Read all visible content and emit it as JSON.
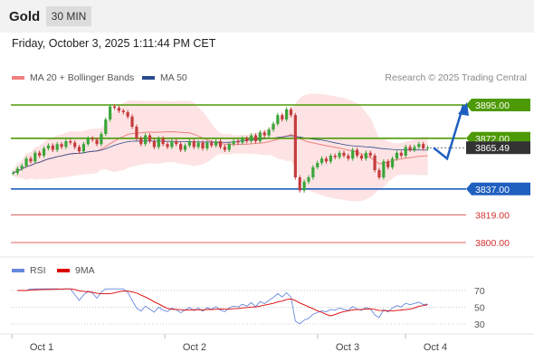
{
  "header": {
    "title": "Gold",
    "timeframe": "30 MIN"
  },
  "datetime": "Friday, October 3, 2025 1:11:44 PM CET",
  "legend": {
    "ma20_label": "MA 20 + Bollinger Bands",
    "ma20_color": "#f08080",
    "ma50_label": "MA 50",
    "ma50_color": "#2b4b8c"
  },
  "credit": "Research © 2025 Trading Central",
  "rsi_legend": {
    "rsi_label": "RSI",
    "rsi_color": "#6688dd",
    "ma_label": "9MA",
    "ma_color": "#dd0000"
  },
  "chart_data": {
    "type": "candlestick",
    "instrument": "Gold",
    "timeframe": "30 MIN",
    "x_ticks": [
      "Oct 1",
      "Oct 2",
      "Oct 3",
      "Oct 4"
    ],
    "current_price": "3865.49",
    "levels": [
      {
        "value": "3895.00",
        "kind": "resistance",
        "color": "#4e9a06"
      },
      {
        "value": "3872.00",
        "kind": "resistance",
        "color": "#4e9a06"
      },
      {
        "value": "3837.00",
        "kind": "pivot",
        "color": "#1f5fbf"
      },
      {
        "value": "3819.00",
        "kind": "support",
        "color": "#d03030"
      },
      {
        "value": "3800.00",
        "kind": "support",
        "color": "#d03030"
      }
    ],
    "candles_close": [
      3848,
      3851,
      3853,
      3858,
      3856,
      3862,
      3860,
      3865,
      3867,
      3864,
      3868,
      3866,
      3870,
      3869,
      3866,
      3863,
      3868,
      3872,
      3871,
      3868,
      3875,
      3885,
      3894,
      3893,
      3891,
      3890,
      3887,
      3880,
      3872,
      3868,
      3874,
      3870,
      3866,
      3872,
      3868,
      3866,
      3870,
      3868,
      3864,
      3867,
      3870,
      3866,
      3869,
      3865,
      3869,
      3867,
      3870,
      3866,
      3864,
      3868,
      3870,
      3869,
      3872,
      3870,
      3874,
      3870,
      3876,
      3874,
      3878,
      3882,
      3888,
      3885,
      3892,
      3888,
      3845,
      3836,
      3842,
      3845,
      3852,
      3855,
      3858,
      3856,
      3860,
      3859,
      3862,
      3860,
      3858,
      3864,
      3860,
      3858,
      3862,
      3860,
      3850,
      3845,
      3856,
      3852,
      3858,
      3862,
      3860,
      3866,
      3864,
      3866,
      3868,
      3865,
      3865.49
    ],
    "projection": [
      3865.49,
      3858,
      3895
    ],
    "rsi": {
      "ticks": [
        "70",
        "50",
        "30"
      ],
      "ylim": [
        20,
        80
      ]
    }
  }
}
